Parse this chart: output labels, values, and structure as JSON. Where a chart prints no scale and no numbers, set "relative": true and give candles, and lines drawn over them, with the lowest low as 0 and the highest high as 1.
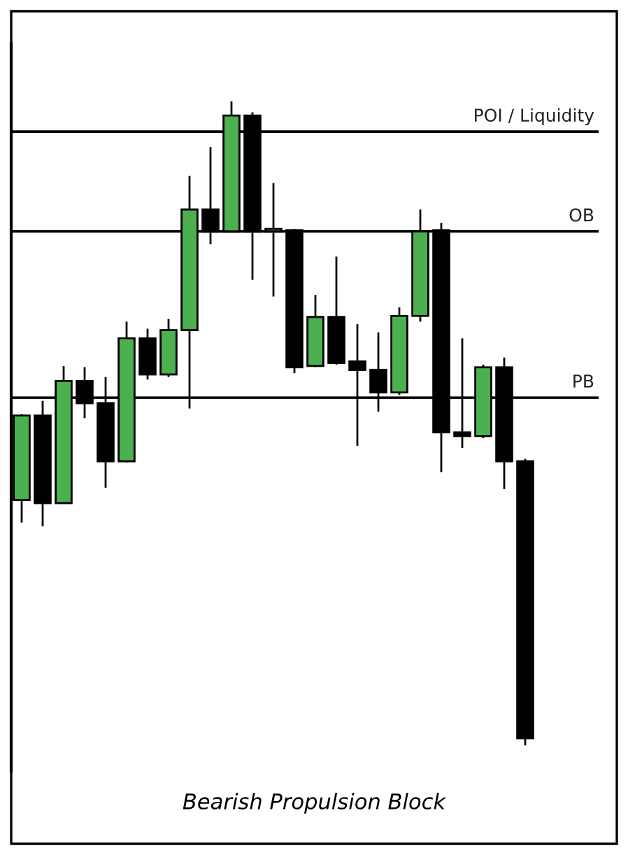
{
  "chart_data": {
    "type": "candlestick",
    "title": "Bearish Propulsion Block",
    "relative": true,
    "categories": [
      null,
      null,
      null,
      null,
      null,
      null,
      null,
      null,
      null,
      null,
      null,
      null,
      null,
      null,
      null,
      null,
      null,
      null,
      null,
      null,
      null,
      null,
      null,
      null,
      null
    ],
    "ohlc": [
      [
        0.381,
        0.514,
        0.346,
        0.512
      ],
      [
        0.512,
        0.535,
        0.34,
        0.376
      ],
      [
        0.376,
        0.589,
        0.376,
        0.566
      ],
      [
        0.566,
        0.587,
        0.508,
        0.531
      ],
      [
        0.531,
        0.572,
        0.4,
        0.441
      ],
      [
        0.441,
        0.658,
        0.439,
        0.632
      ],
      [
        0.632,
        0.647,
        0.568,
        0.576
      ],
      [
        0.576,
        0.662,
        0.572,
        0.645
      ],
      [
        0.645,
        0.884,
        0.523,
        0.832
      ],
      [
        0.832,
        0.929,
        0.778,
        0.798
      ],
      [
        0.798,
        1,
        0.798,
        0.978
      ],
      [
        0.978,
        0.983,
        0.723,
        0.798
      ],
      [
        0.798,
        0.873,
        0.697,
        0.8
      ],
      [
        0.8,
        0.802,
        0.578,
        0.587
      ],
      [
        0.589,
        0.699,
        0.587,
        0.665
      ],
      [
        0.665,
        0.759,
        0.591,
        0.594
      ],
      [
        0.596,
        0.654,
        0.465,
        0.583
      ],
      [
        0.583,
        0.641,
        0.518,
        0.548
      ],
      [
        0.548,
        0.68,
        0.544,
        0.667
      ],
      [
        0.667,
        0.832,
        0.658,
        0.798
      ],
      [
        0.8,
        0.811,
        0.424,
        0.486
      ],
      [
        0.486,
        0.632,
        0.462,
        0.48
      ],
      [
        0.48,
        0.591,
        0.477,
        0.587
      ],
      [
        0.587,
        0.602,
        0.398,
        0.441
      ],
      [
        0.441,
        0.445,
        0,
        0.011
      ]
    ],
    "colors": [
      "#4caf50",
      "#000000",
      "#4caf50",
      "#000000",
      "#000000",
      "#4caf50",
      "#000000",
      "#4caf50",
      "#4caf50",
      "#000000",
      "#4caf50",
      "#000000",
      "#4caf50",
      "#000000",
      "#4caf50",
      "#000000",
      "#000000",
      "#000000",
      "#4caf50",
      "#4caf50",
      "#000000",
      "#000000",
      "#4caf50",
      "#000000",
      "#000000"
    ],
    "ref_lines": [
      {
        "axis": "y",
        "value": 0.953,
        "label": "POI / Liquidity",
        "color": "#000000"
      },
      {
        "axis": "y",
        "value": 0.798,
        "label": "OB",
        "color": "#000000"
      },
      {
        "axis": "y",
        "value": 0.54,
        "label": "PB",
        "color": "#000000"
      }
    ]
  }
}
